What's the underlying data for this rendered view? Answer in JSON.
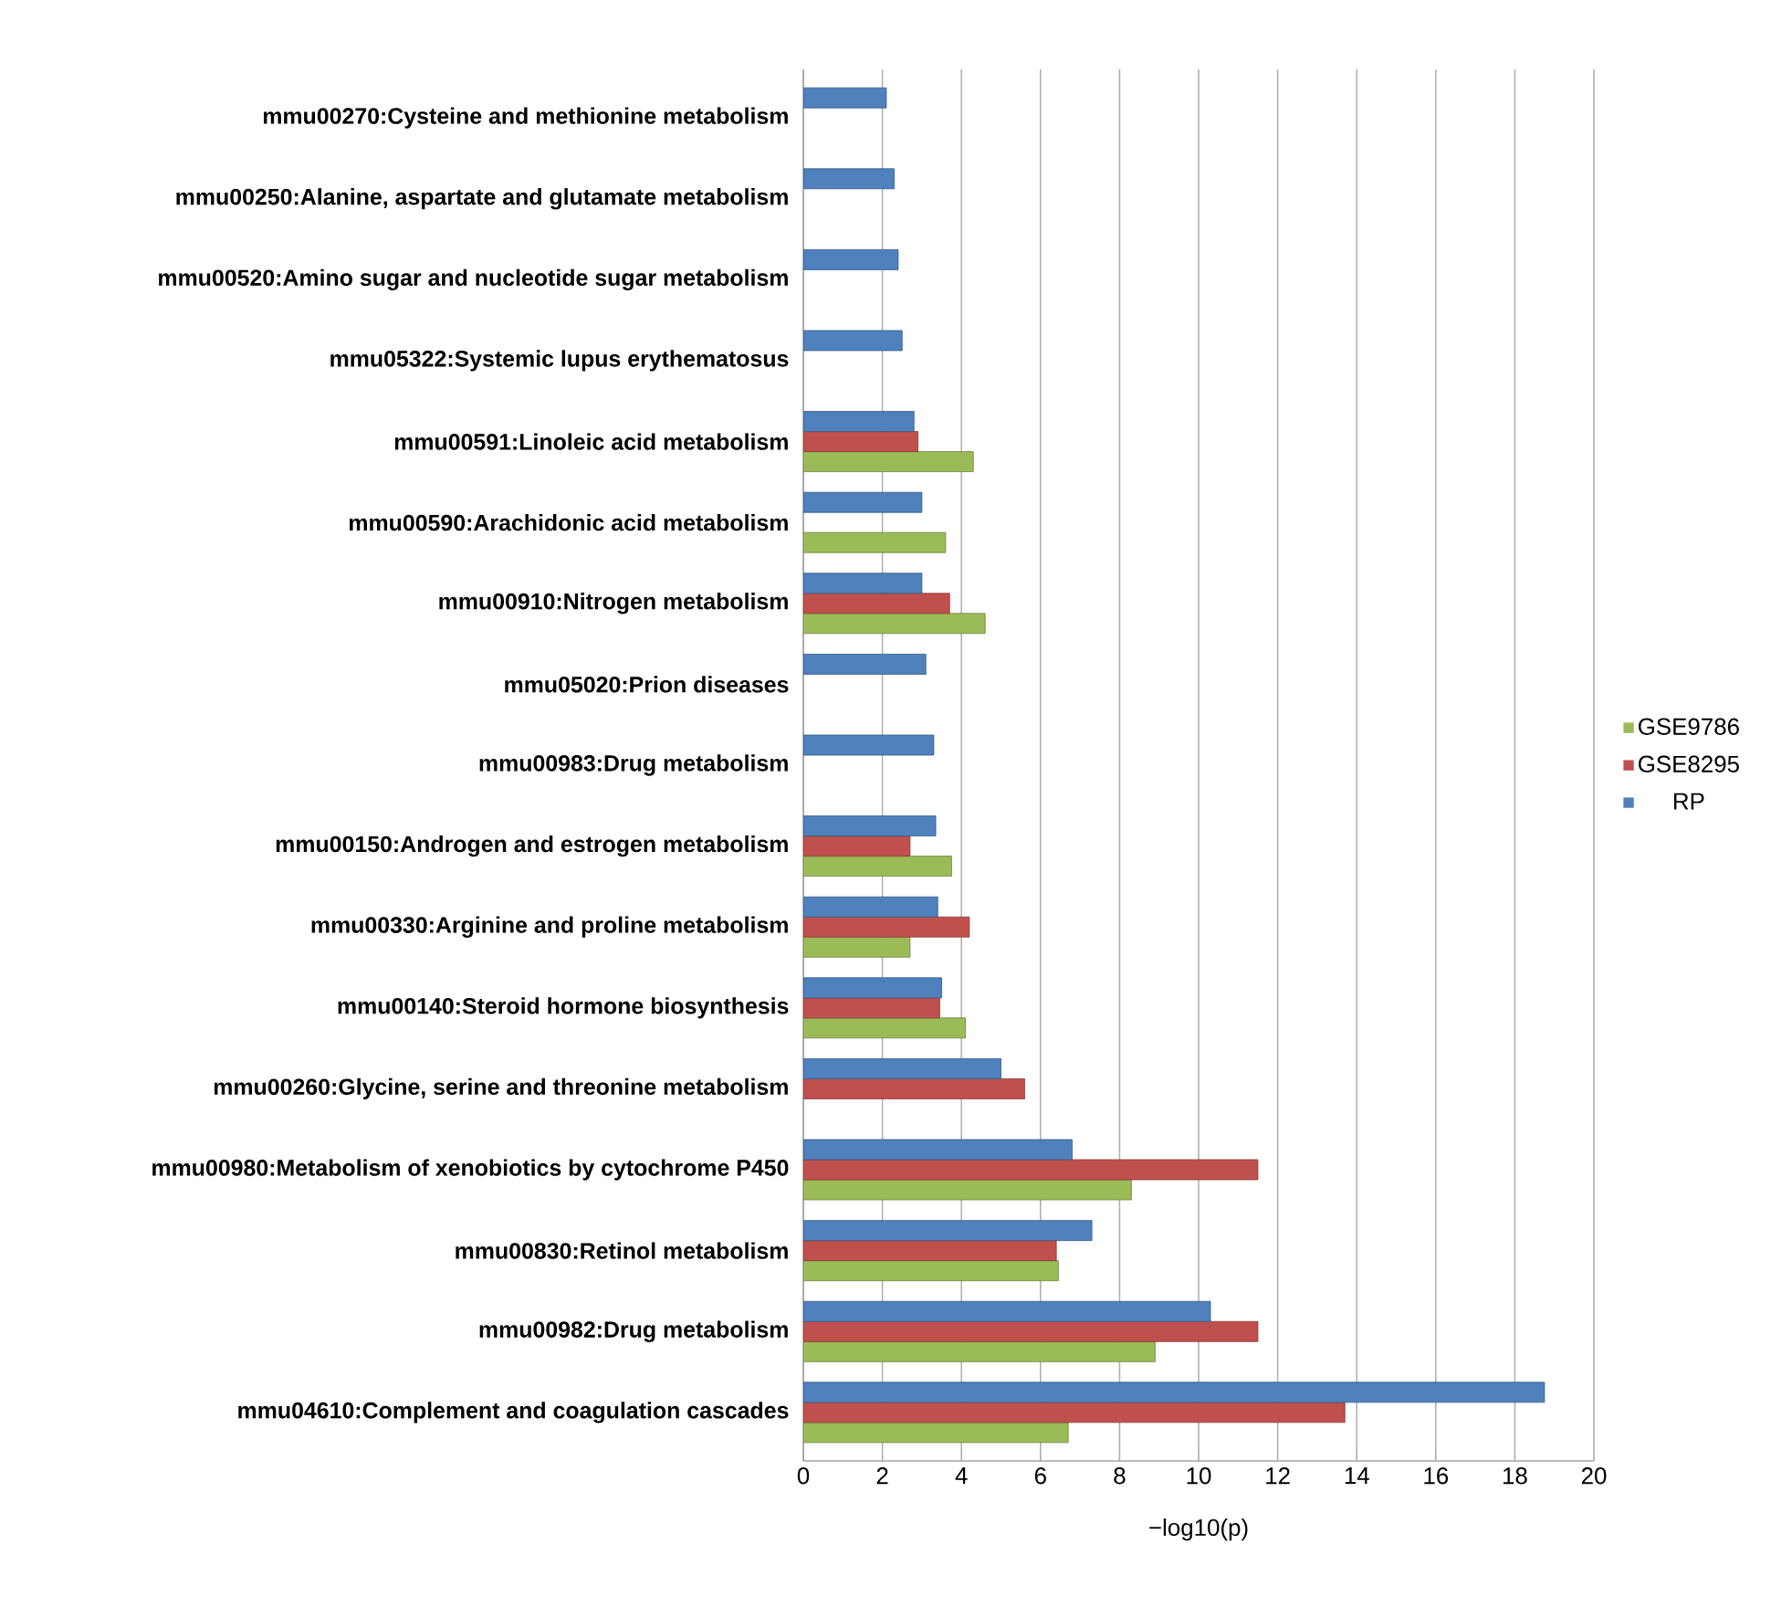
{
  "chart_data": {
    "type": "bar",
    "orientation": "horizontal",
    "xlabel": "−log10(p)",
    "categories": [
      "mmu00270:Cysteine and methionine metabolism",
      "mmu00250:Alanine, aspartate and glutamate metabolism",
      "mmu00520:Amino sugar and nucleotide sugar metabolism",
      "mmu05322:Systemic lupus erythematosus",
      "mmu00591:Linoleic acid metabolism",
      "mmu00590:Arachidonic acid metabolism",
      "mmu00910:Nitrogen metabolism",
      "mmu05020:Prion diseases",
      "mmu00983:Drug metabolism",
      "mmu00150:Androgen and estrogen metabolism",
      "mmu00330:Arginine and proline metabolism",
      "mmu00140:Steroid hormone biosynthesis",
      "mmu00260:Glycine, serine and threonine metabolism",
      "mmu00980:Metabolism of xenobiotics by cytochrome P450",
      "mmu00830:Retinol metabolism",
      "mmu00982:Drug metabolism",
      "mmu04610:Complement and coagulation cascades"
    ],
    "series": [
      {
        "name": "GSE9786",
        "color": "#9bbb59",
        "values": [
          null,
          null,
          null,
          null,
          4.3,
          3.6,
          4.6,
          null,
          null,
          3.75,
          2.7,
          4.1,
          null,
          8.3,
          6.45,
          8.9,
          6.7
        ]
      },
      {
        "name": "GSE8295",
        "color": "#c0504d",
        "values": [
          null,
          null,
          null,
          null,
          2.9,
          null,
          3.7,
          null,
          null,
          2.7,
          4.2,
          3.45,
          5.6,
          11.5,
          6.4,
          11.5,
          13.7
        ]
      },
      {
        "name": "RP",
        "color": "#4f81bd",
        "values": [
          2.1,
          2.3,
          2.4,
          2.5,
          2.8,
          3.0,
          3.0,
          3.1,
          3.3,
          3.35,
          3.4,
          3.5,
          5.0,
          6.8,
          7.3,
          10.3,
          18.75
        ]
      }
    ],
    "xlim": [
      0,
      20
    ],
    "xticks": [
      0,
      2,
      4,
      6,
      8,
      10,
      12,
      14,
      16,
      18,
      20
    ],
    "grid": "x",
    "legend": "right"
  }
}
